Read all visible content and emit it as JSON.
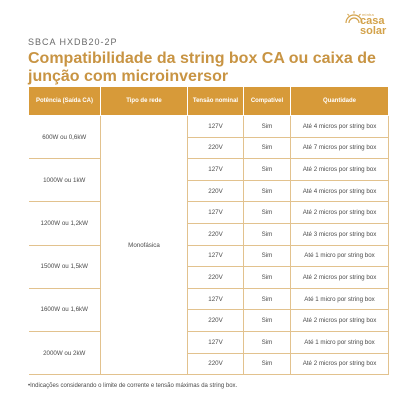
{
  "header": {
    "code": "SBCA HXDB20-2P",
    "title": "Compatibilidade da string box CA ou caixa de junção com microinversor"
  },
  "logo": {
    "small_text": "minha",
    "line1": "casa",
    "line2": "solar",
    "color": "#d3a24a"
  },
  "table": {
    "headers": [
      "Potência (Saída CA)",
      "Tipo de rede",
      "Tensão nominal",
      "Compatível",
      "Quantidade"
    ],
    "grid_type": "Monofásica",
    "groups": [
      {
        "power": "600W ou 0,6kW",
        "rows": [
          {
            "voltage": "127V",
            "compatible": "Sim",
            "quantity": "Até 4 micros por string box"
          },
          {
            "voltage": "220V",
            "compatible": "Sim",
            "quantity": "Até 7 micros por string box"
          }
        ]
      },
      {
        "power": "1000W ou 1kW",
        "rows": [
          {
            "voltage": "127V",
            "compatible": "Sim",
            "quantity": "Até 2 micros por string box"
          },
          {
            "voltage": "220V",
            "compatible": "Sim",
            "quantity": "Até 4 micros por string box"
          }
        ]
      },
      {
        "power": "1200W ou 1,2kW",
        "rows": [
          {
            "voltage": "127V",
            "compatible": "Sim",
            "quantity": "Até 2 micros por string box"
          },
          {
            "voltage": "220V",
            "compatible": "Sim",
            "quantity": "Até 3 micros por string box"
          }
        ]
      },
      {
        "power": "1500W ou 1,5kW",
        "rows": [
          {
            "voltage": "127V",
            "compatible": "Sim",
            "quantity": "Até 1 micro por string box"
          },
          {
            "voltage": "220V",
            "compatible": "Sim",
            "quantity": "Até 2 micros por string box"
          }
        ]
      },
      {
        "power": "1600W ou 1,6kW",
        "rows": [
          {
            "voltage": "127V",
            "compatible": "Sim",
            "quantity": "Até 1 micro por string box"
          },
          {
            "voltage": "220V",
            "compatible": "Sim",
            "quantity": "Até 2 micros por string box"
          }
        ]
      },
      {
        "power": "2000W ou 2kW",
        "rows": [
          {
            "voltage": "127V",
            "compatible": "Sim",
            "quantity": "Até 1 micro por string box"
          },
          {
            "voltage": "220V",
            "compatible": "Sim",
            "quantity": "Até 2 micros por string box"
          }
        ]
      }
    ]
  },
  "footnote": "•Indicações considerando o limite de corrente e tensão máximas da string box.",
  "colors": {
    "accent": "#d79a39",
    "title": "#c89443",
    "border": "#e2c28e"
  }
}
